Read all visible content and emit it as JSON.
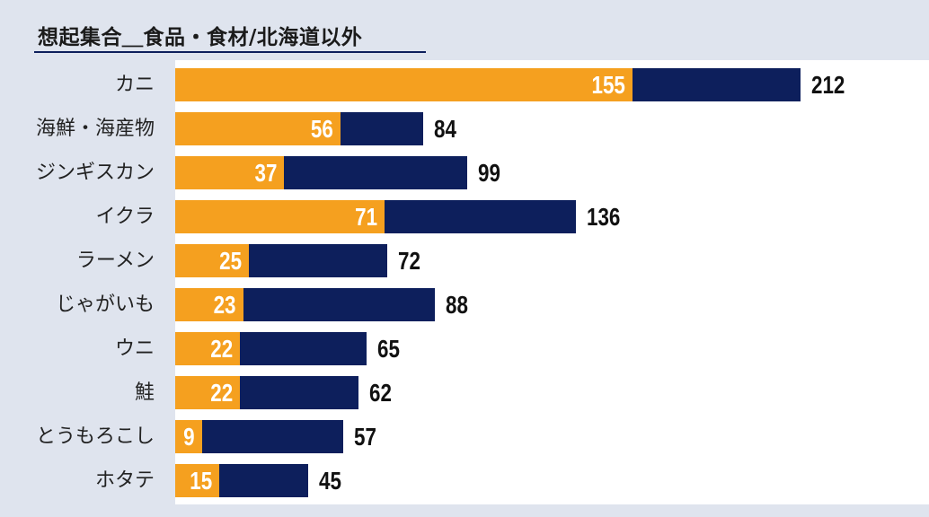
{
  "title": "想起集合＿食品・食材/北海道以外",
  "chart_data": {
    "type": "bar",
    "orientation": "horizontal",
    "title": "想起集合＿食品・食材/北海道以外",
    "categories": [
      "カニ",
      "海鮮・海産物",
      "ジンギスカン",
      "イクラ",
      "ラーメン",
      "じゃがいも",
      "ウニ",
      "鮭",
      "とうもろこし",
      "ホタテ"
    ],
    "series": [
      {
        "values": [
          155,
          56,
          37,
          71,
          25,
          23,
          22,
          22,
          9,
          15
        ],
        "color": "#f5a01f"
      },
      {
        "values": [
          212,
          84,
          99,
          136,
          72,
          88,
          65,
          62,
          57,
          45
        ],
        "color": "#0d1f5c"
      }
    ],
    "xlim": [
      0,
      212
    ],
    "grid": false,
    "legend": "none"
  }
}
